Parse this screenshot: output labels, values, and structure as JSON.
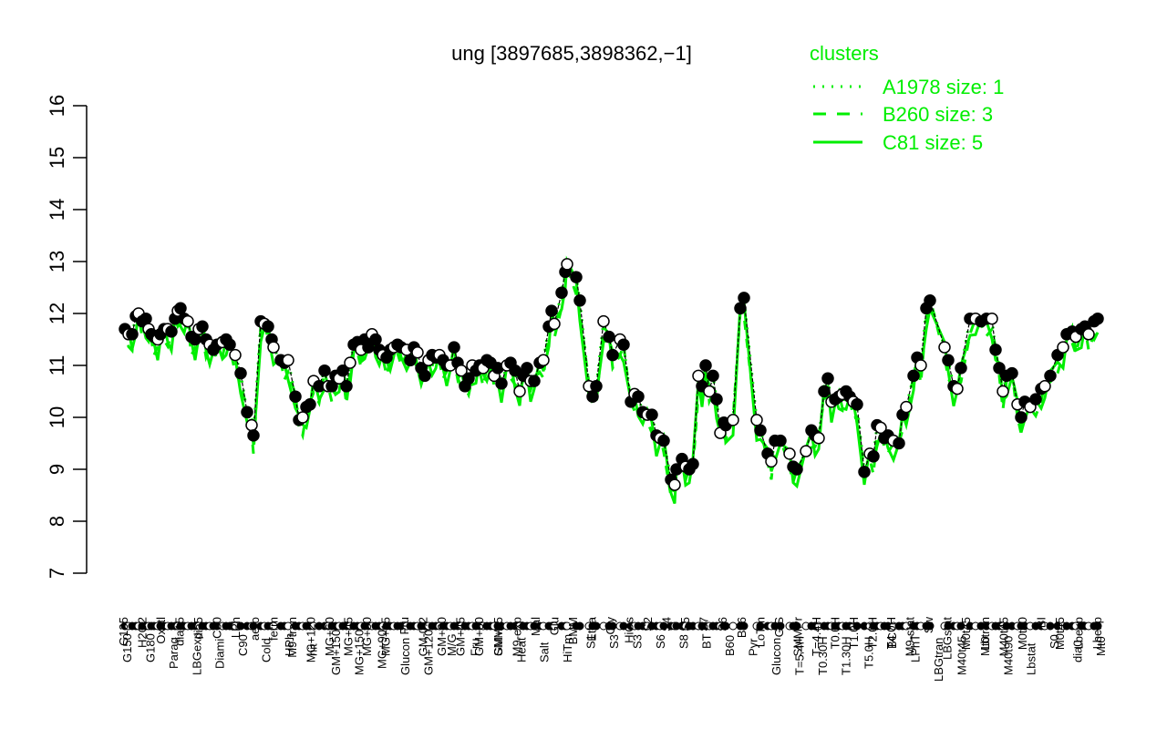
{
  "chart_data": {
    "type": "line",
    "title": "ung [3897685,3898362,−1]",
    "xlabel": "",
    "ylabel": "",
    "ylim": [
      7,
      16
    ],
    "yticks": [
      7,
      8,
      9,
      10,
      11,
      12,
      13,
      14,
      15,
      16
    ],
    "grid": false,
    "legend": {
      "title": "clusters",
      "position": "top-right",
      "color": "#00ee00",
      "entries": [
        {
          "label": "A1978 size: 1",
          "style": "dotted"
        },
        {
          "label": "B260 size: 3",
          "style": "dashed"
        },
        {
          "label": "C81 size: 5",
          "style": "solid"
        }
      ]
    },
    "x_labels_top": [
      "G135",
      "H2O2",
      "Oxctl",
      "dia15",
      "dia5",
      "C30",
      "LPh",
      "aero",
      "ferm",
      "M9-tran",
      "MG+120",
      "MG+60",
      "MG+45",
      "MG+30",
      "MG+15",
      "Fru",
      "GM-0.2",
      "GM+60",
      "GM+45",
      "GM+30",
      "GM+15",
      "M9-exp",
      "Mal",
      "Glu",
      "BMM",
      "Etha",
      "Gly",
      "HiOs",
      "S2",
      "S4",
      "S5",
      "S7",
      "S6",
      "B36",
      "LoTm",
      "G/S",
      "SMMPr",
      "T=4.4H",
      "T0.0H",
      "T1.0H",
      "T2.0H",
      "T4.0H",
      "M9-stat",
      "Sw",
      "LBGstat",
      "M0t45",
      "Lbtran",
      "M40t45",
      "M0t90",
      "BI",
      "M0t45",
      "Lbexp",
      "Lbexp"
    ],
    "x_labels_bottom": [
      "G150",
      "G180",
      "Paraq",
      "LBGexp",
      "Diami",
      "C90",
      "Cold",
      "HPh",
      "nit",
      "GM+150",
      "MG+150",
      "MG+90",
      "Glucon",
      "GM+120",
      "M/G",
      "Fru",
      "SMM",
      "Heat",
      "Salt",
      "HiTm",
      "S1",
      "S3",
      "S3",
      "S6",
      "S8",
      "BT",
      "B60",
      "Pyr",
      "Glucon",
      "T=5.4H",
      "T0.30H",
      "T1.30H",
      "T5.0H",
      "BC",
      "LPhT",
      "LBGtran",
      "M40t45",
      "Mt0",
      "M40t90",
      "Lbstat",
      "S0",
      "dia0",
      "Mt0"
    ],
    "series": [
      {
        "name": "expression",
        "color": "#000000",
        "points": [
          [
            137,
            11.7
          ],
          [
            141,
            11.6
          ],
          [
            145,
            11.6
          ],
          [
            149,
            11.95
          ],
          [
            152,
            12.0
          ],
          [
            156,
            11.85
          ],
          [
            160,
            11.9
          ],
          [
            163,
            11.7
          ],
          [
            166,
            11.6
          ],
          [
            169,
            11.55
          ],
          [
            173,
            11.5
          ],
          [
            176,
            11.6
          ],
          [
            180,
            11.7
          ],
          [
            184,
            11.7
          ],
          [
            188,
            11.65
          ],
          [
            192,
            11.9
          ],
          [
            195,
            12.05
          ],
          [
            198,
            12.1
          ],
          [
            202,
            11.9
          ],
          [
            206,
            11.85
          ],
          [
            210,
            11.55
          ],
          [
            214,
            11.5
          ],
          [
            218,
            11.7
          ],
          [
            222,
            11.75
          ],
          [
            226,
            11.5
          ],
          [
            230,
            11.4
          ],
          [
            234,
            11.3
          ],
          [
            238,
            11.4
          ],
          [
            244,
            11.45
          ],
          [
            248,
            11.5
          ],
          [
            252,
            11.4
          ],
          [
            258,
            11.2
          ],
          [
            264,
            10.85
          ],
          [
            271,
            10.1
          ],
          [
            276,
            9.85
          ],
          [
            278,
            9.65
          ],
          [
            286,
            11.85
          ],
          [
            290,
            11.8
          ],
          [
            294,
            11.75
          ],
          [
            298,
            11.5
          ],
          [
            300,
            11.35
          ],
          [
            308,
            11.1
          ],
          [
            312,
            11.05
          ],
          [
            316,
            11.1
          ],
          [
            324,
            10.4
          ],
          [
            328,
            9.95
          ],
          [
            332,
            10.0
          ],
          [
            336,
            10.2
          ],
          [
            340,
            10.25
          ],
          [
            344,
            10.7
          ],
          [
            350,
            10.6
          ],
          [
            356,
            10.9
          ],
          [
            360,
            10.6
          ],
          [
            364,
            10.6
          ],
          [
            368,
            10.8
          ],
          [
            372,
            10.75
          ],
          [
            376,
            10.9
          ],
          [
            380,
            10.6
          ],
          [
            384,
            11.05
          ],
          [
            388,
            11.4
          ],
          [
            392,
            11.45
          ],
          [
            396,
            11.3
          ],
          [
            400,
            11.5
          ],
          [
            404,
            11.35
          ],
          [
            408,
            11.6
          ],
          [
            412,
            11.5
          ],
          [
            416,
            11.3
          ],
          [
            420,
            11.2
          ],
          [
            424,
            11.15
          ],
          [
            428,
            11.3
          ],
          [
            432,
            11.35
          ],
          [
            436,
            11.4
          ],
          [
            440,
            11.35
          ],
          [
            446,
            11.3
          ],
          [
            450,
            11.1
          ],
          [
            454,
            11.35
          ],
          [
            458,
            11.25
          ],
          [
            462,
            10.95
          ],
          [
            466,
            10.8
          ],
          [
            470,
            11.1
          ],
          [
            474,
            11.2
          ],
          [
            478,
            11.15
          ],
          [
            482,
            11.2
          ],
          [
            486,
            11.1
          ],
          [
            490,
            11.0
          ],
          [
            494,
            11.0
          ],
          [
            498,
            11.35
          ],
          [
            502,
            11.05
          ],
          [
            506,
            10.9
          ],
          [
            510,
            10.6
          ],
          [
            514,
            10.75
          ],
          [
            518,
            11.0
          ],
          [
            522,
            10.9
          ],
          [
            526,
            11.0
          ],
          [
            530,
            10.95
          ],
          [
            534,
            11.1
          ],
          [
            538,
            11.05
          ],
          [
            542,
            10.8
          ],
          [
            546,
            10.95
          ],
          [
            550,
            10.65
          ],
          [
            556,
            11.0
          ],
          [
            560,
            11.05
          ],
          [
            565,
            10.9
          ],
          [
            570,
            10.5
          ],
          [
            574,
            10.8
          ],
          [
            578,
            10.95
          ],
          [
            582,
            10.7
          ],
          [
            586,
            10.7
          ],
          [
            592,
            11.05
          ],
          [
            596,
            11.1
          ],
          [
            602,
            11.75
          ],
          [
            605,
            12.05
          ],
          [
            608,
            11.8
          ],
          [
            616,
            12.4
          ],
          [
            620,
            12.8
          ],
          [
            622,
            12.95
          ],
          [
            632,
            12.7
          ],
          [
            636,
            12.25
          ],
          [
            646,
            10.6
          ],
          [
            650,
            10.4
          ],
          [
            654,
            10.6
          ],
          [
            662,
            11.85
          ],
          [
            668,
            11.55
          ],
          [
            672,
            11.2
          ],
          [
            680,
            11.5
          ],
          [
            684,
            11.4
          ],
          [
            692,
            10.3
          ],
          [
            696,
            10.45
          ],
          [
            700,
            10.4
          ],
          [
            705,
            10.1
          ],
          [
            710,
            10.05
          ],
          [
            715,
            10.05
          ],
          [
            720,
            9.65
          ],
          [
            724,
            9.6
          ],
          [
            728,
            9.55
          ],
          [
            736,
            8.8
          ],
          [
            740,
            8.7
          ],
          [
            742,
            9.0
          ],
          [
            748,
            9.2
          ],
          [
            752,
            9.05
          ],
          [
            756,
            9.0
          ],
          [
            760,
            9.1
          ],
          [
            766,
            10.8
          ],
          [
            770,
            10.6
          ],
          [
            774,
            11.0
          ],
          [
            778,
            10.5
          ],
          [
            782,
            10.8
          ],
          [
            786,
            10.35
          ],
          [
            790,
            9.7
          ],
          [
            794,
            9.9
          ],
          [
            796,
            9.85
          ],
          [
            804,
            9.95
          ],
          [
            812,
            12.1
          ],
          [
            816,
            12.3
          ],
          [
            830,
            9.95
          ],
          [
            834,
            9.75
          ],
          [
            842,
            9.3
          ],
          [
            846,
            9.15
          ],
          [
            850,
            9.55
          ],
          [
            856,
            9.55
          ],
          [
            866,
            9.3
          ],
          [
            870,
            9.05
          ],
          [
            874,
            9.0
          ],
          [
            884,
            9.35
          ],
          [
            890,
            9.75
          ],
          [
            894,
            9.65
          ],
          [
            898,
            9.6
          ],
          [
            904,
            10.5
          ],
          [
            908,
            10.75
          ],
          [
            912,
            10.3
          ],
          [
            916,
            10.35
          ],
          [
            920,
            10.4
          ],
          [
            924,
            10.45
          ],
          [
            928,
            10.5
          ],
          [
            932,
            10.4
          ],
          [
            936,
            10.3
          ],
          [
            940,
            10.25
          ],
          [
            948,
            8.95
          ],
          [
            954,
            9.3
          ],
          [
            958,
            9.25
          ],
          [
            962,
            9.85
          ],
          [
            966,
            9.8
          ],
          [
            970,
            9.6
          ],
          [
            974,
            9.65
          ],
          [
            980,
            9.55
          ],
          [
            986,
            9.5
          ],
          [
            990,
            10.05
          ],
          [
            994,
            10.2
          ],
          [
            1002,
            10.8
          ],
          [
            1006,
            11.15
          ],
          [
            1010,
            11.0
          ],
          [
            1016,
            12.1
          ],
          [
            1020,
            12.25
          ],
          [
            1036,
            11.35
          ],
          [
            1040,
            11.1
          ],
          [
            1046,
            10.6
          ],
          [
            1050,
            10.55
          ],
          [
            1054,
            10.95
          ],
          [
            1064,
            11.9
          ],
          [
            1070,
            11.9
          ],
          [
            1076,
            11.85
          ],
          [
            1082,
            11.9
          ],
          [
            1088,
            11.9
          ],
          [
            1092,
            11.3
          ],
          [
            1096,
            10.95
          ],
          [
            1100,
            10.5
          ],
          [
            1104,
            10.8
          ],
          [
            1110,
            10.85
          ],
          [
            1116,
            10.25
          ],
          [
            1120,
            10.0
          ],
          [
            1124,
            10.3
          ],
          [
            1130,
            10.2
          ],
          [
            1136,
            10.35
          ],
          [
            1142,
            10.55
          ],
          [
            1146,
            10.6
          ],
          [
            1152,
            10.8
          ],
          [
            1160,
            11.2
          ],
          [
            1166,
            11.35
          ],
          [
            1170,
            11.6
          ],
          [
            1176,
            11.65
          ],
          [
            1180,
            11.55
          ],
          [
            1186,
            11.7
          ],
          [
            1190,
            11.75
          ],
          [
            1194,
            11.6
          ],
          [
            1200,
            11.85
          ],
          [
            1204,
            11.9
          ]
        ]
      }
    ]
  }
}
